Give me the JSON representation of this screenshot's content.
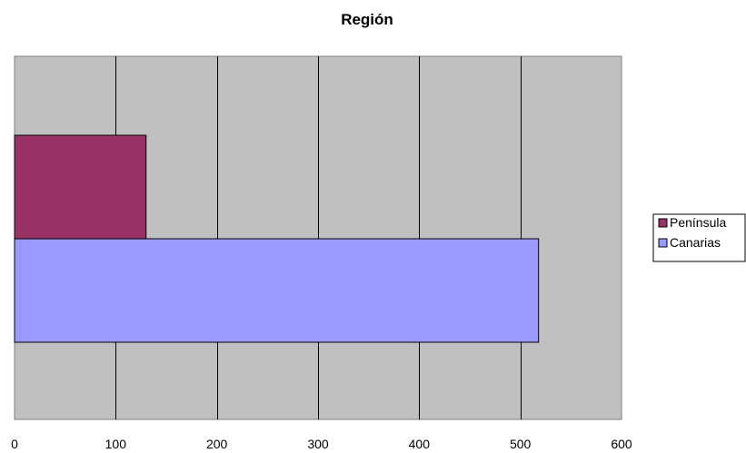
{
  "chart_data": {
    "type": "bar",
    "orientation": "horizontal",
    "title": "Región",
    "xlabel": "",
    "ylabel": "",
    "xlim": [
      0,
      600
    ],
    "x_ticks": [
      0,
      100,
      200,
      300,
      400,
      500,
      600
    ],
    "grid": true,
    "legend_position": "right",
    "series": [
      {
        "name": "Península",
        "value": 130,
        "color": "#993366"
      },
      {
        "name": "Canarias",
        "value": 518,
        "color": "#9999FF"
      }
    ],
    "plot_background": "#C0C0C0"
  }
}
